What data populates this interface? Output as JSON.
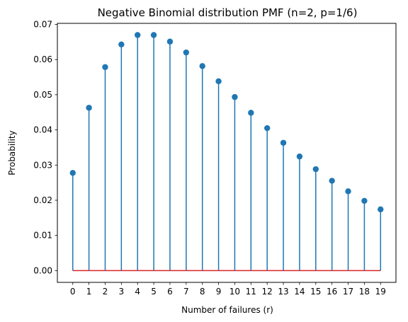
{
  "chart_data": {
    "type": "stem",
    "title": "Negative Binomial distribution PMF (n=2, p=1/6)",
    "xlabel": "Number of failures (r)",
    "ylabel": "Probability",
    "x": [
      0,
      1,
      2,
      3,
      4,
      5,
      6,
      7,
      8,
      9,
      10,
      11,
      12,
      13,
      14,
      15,
      16,
      17,
      18,
      19
    ],
    "values": [
      0.02778,
      0.0463,
      0.05787,
      0.0643,
      0.06698,
      0.06698,
      0.06512,
      0.06202,
      0.05815,
      0.05384,
      0.04935,
      0.04487,
      0.0405,
      0.03634,
      0.03245,
      0.02884,
      0.02554,
      0.02254,
      0.01983,
      0.0174
    ],
    "xticks": [
      "0",
      "1",
      "2",
      "3",
      "4",
      "5",
      "6",
      "7",
      "8",
      "9",
      "10",
      "11",
      "12",
      "13",
      "14",
      "15",
      "16",
      "17",
      "18",
      "19"
    ],
    "yticks": [
      "0.00",
      "0.01",
      "0.02",
      "0.03",
      "0.04",
      "0.05",
      "0.06",
      "0.07"
    ],
    "ytick_values": [
      0,
      0.01,
      0.02,
      0.03,
      0.04,
      0.05,
      0.06,
      0.07
    ],
    "xlim": [
      -0.95,
      19.95
    ],
    "ylim": [
      -0.00335,
      0.0703
    ],
    "grid": false,
    "colors": {
      "stem": "#1f77b4",
      "marker": "#1f77b4",
      "baseline": "#d62728"
    }
  }
}
